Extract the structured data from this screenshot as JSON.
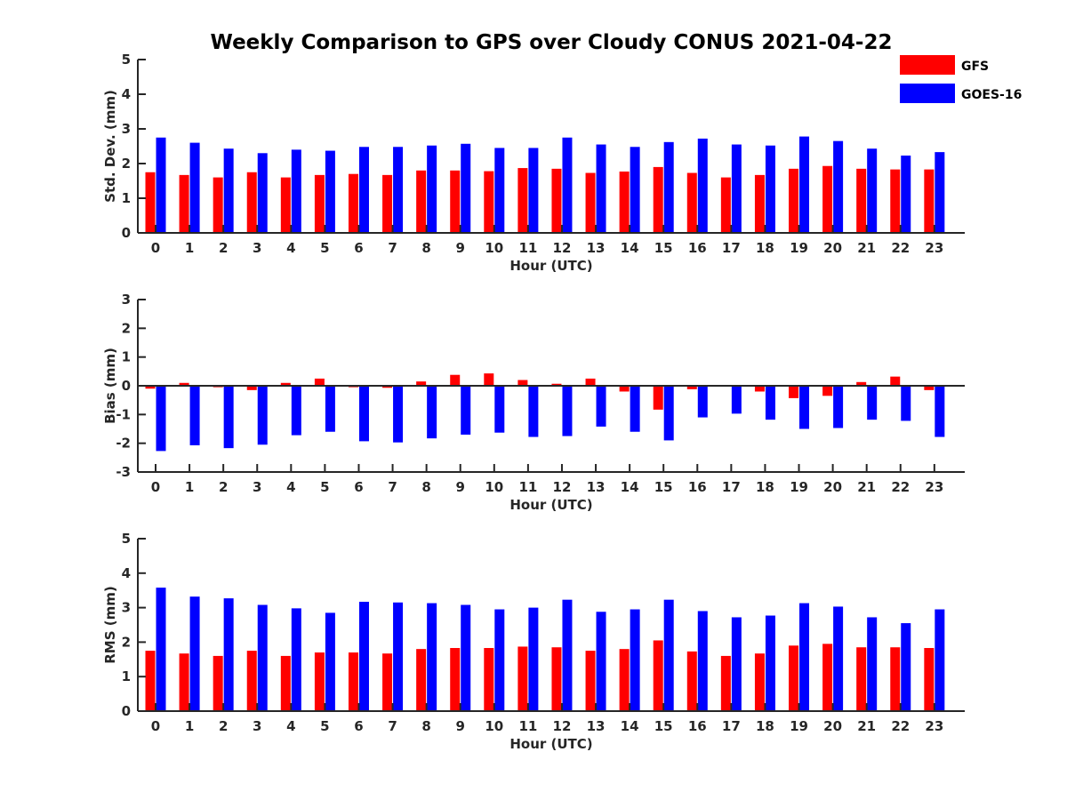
{
  "title": "Weekly Comparison to GPS over Cloudy CONUS 2021-04-22",
  "legend": {
    "placement": "top-right",
    "items": [
      {
        "label": "GFS",
        "color": "#ff0000"
      },
      {
        "label": "GOES-16",
        "color": "#0000ff"
      }
    ]
  },
  "chart_data": [
    {
      "type": "bar",
      "xlabel": "Hour (UTC)",
      "ylabel": "Std. Dev. (mm)",
      "ylim": [
        0,
        5
      ],
      "yticks": [
        0,
        1,
        2,
        3,
        4,
        5
      ],
      "categories": [
        "0",
        "1",
        "2",
        "3",
        "4",
        "5",
        "6",
        "7",
        "8",
        "9",
        "10",
        "11",
        "12",
        "13",
        "14",
        "15",
        "16",
        "17",
        "18",
        "19",
        "20",
        "21",
        "22",
        "23"
      ],
      "series": [
        {
          "name": "GFS",
          "color": "#ff0000",
          "values": [
            1.75,
            1.67,
            1.6,
            1.75,
            1.6,
            1.67,
            1.7,
            1.67,
            1.8,
            1.8,
            1.78,
            1.87,
            1.85,
            1.73,
            1.77,
            1.9,
            1.73,
            1.6,
            1.67,
            1.85,
            1.93,
            1.85,
            1.83,
            1.83
          ]
        },
        {
          "name": "GOES-16",
          "color": "#0000ff",
          "values": [
            2.75,
            2.6,
            2.43,
            2.3,
            2.4,
            2.37,
            2.48,
            2.48,
            2.52,
            2.57,
            2.45,
            2.45,
            2.75,
            2.55,
            2.48,
            2.62,
            2.72,
            2.55,
            2.52,
            2.78,
            2.65,
            2.43,
            2.23,
            2.33
          ]
        }
      ]
    },
    {
      "type": "bar",
      "xlabel": "Hour (UTC)",
      "ylabel": "Bias (mm)",
      "ylim": [
        -3,
        3
      ],
      "yticks": [
        -3,
        -2,
        -1,
        0,
        1,
        2,
        3
      ],
      "categories": [
        "0",
        "1",
        "2",
        "3",
        "4",
        "5",
        "6",
        "7",
        "8",
        "9",
        "10",
        "11",
        "12",
        "13",
        "14",
        "15",
        "16",
        "17",
        "18",
        "19",
        "20",
        "21",
        "22",
        "23"
      ],
      "series": [
        {
          "name": "GFS",
          "color": "#ff0000",
          "values": [
            -0.1,
            0.1,
            -0.05,
            -0.15,
            0.1,
            0.25,
            -0.05,
            -0.07,
            0.15,
            0.38,
            0.43,
            0.2,
            0.07,
            0.25,
            -0.2,
            -0.83,
            -0.12,
            -0.03,
            -0.2,
            -0.43,
            -0.35,
            0.13,
            0.32,
            -0.15
          ]
        },
        {
          "name": "GOES-16",
          "color": "#0000ff",
          "values": [
            -2.27,
            -2.07,
            -2.17,
            -2.05,
            -1.72,
            -1.6,
            -1.93,
            -1.97,
            -1.83,
            -1.7,
            -1.63,
            -1.78,
            -1.75,
            -1.42,
            -1.6,
            -1.9,
            -1.1,
            -0.97,
            -1.18,
            -1.5,
            -1.47,
            -1.18,
            -1.22,
            -1.78
          ]
        }
      ]
    },
    {
      "type": "bar",
      "xlabel": "Hour (UTC)",
      "ylabel": "RMS (mm)",
      "ylim": [
        0,
        5
      ],
      "yticks": [
        0,
        1,
        2,
        3,
        4,
        5
      ],
      "categories": [
        "0",
        "1",
        "2",
        "3",
        "4",
        "5",
        "6",
        "7",
        "8",
        "9",
        "10",
        "11",
        "12",
        "13",
        "14",
        "15",
        "16",
        "17",
        "18",
        "19",
        "20",
        "21",
        "22",
        "23"
      ],
      "series": [
        {
          "name": "GFS",
          "color": "#ff0000",
          "values": [
            1.75,
            1.67,
            1.6,
            1.75,
            1.6,
            1.7,
            1.7,
            1.67,
            1.8,
            1.83,
            1.83,
            1.87,
            1.85,
            1.75,
            1.8,
            2.05,
            1.73,
            1.6,
            1.67,
            1.9,
            1.95,
            1.85,
            1.85,
            1.83
          ]
        },
        {
          "name": "GOES-16",
          "color": "#0000ff",
          "values": [
            3.58,
            3.32,
            3.27,
            3.08,
            2.98,
            2.85,
            3.17,
            3.15,
            3.13,
            3.08,
            2.95,
            3.0,
            3.23,
            2.88,
            2.95,
            3.23,
            2.9,
            2.72,
            2.77,
            3.13,
            3.03,
            2.72,
            2.55,
            2.95
          ]
        }
      ]
    }
  ]
}
